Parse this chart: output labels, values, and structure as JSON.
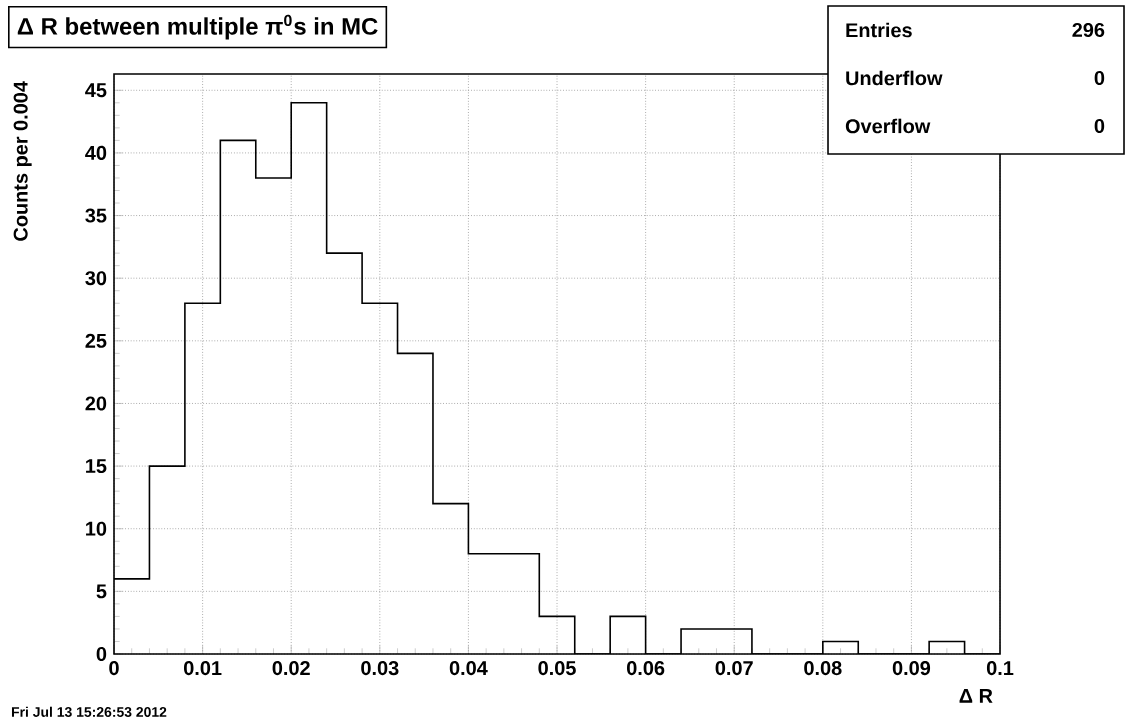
{
  "chart_data": {
    "type": "histogram",
    "title": "Δ R between multiple π$^{0}$s in MC",
    "xlabel": "Δ R",
    "ylabel": "Counts per 0.004",
    "bins": [
      0,
      0.004,
      0.008,
      0.012,
      0.016,
      0.02,
      0.024,
      0.028,
      0.032,
      0.036,
      0.04,
      0.044,
      0.048,
      0.052,
      0.056,
      0.06,
      0.064,
      0.068,
      0.072,
      0.076,
      0.08,
      0.084,
      0.088,
      0.092,
      0.096,
      0.1
    ],
    "values": [
      6,
      15,
      28,
      41,
      38,
      44,
      32,
      28,
      24,
      12,
      8,
      8,
      3,
      0,
      3,
      0,
      2,
      2,
      0,
      0,
      1,
      0,
      0,
      1,
      0
    ],
    "color": "#000000",
    "xlim": [
      0,
      0.1
    ],
    "ylim": [
      0,
      46.3
    ],
    "xticks": [
      {
        "value": 0,
        "label": "0"
      },
      {
        "value": 0.01,
        "label": "0.01"
      },
      {
        "value": 0.02,
        "label": "0.02"
      },
      {
        "value": 0.03,
        "label": "0.03"
      },
      {
        "value": 0.04,
        "label": "0.04"
      },
      {
        "value": 0.05,
        "label": "0.05"
      },
      {
        "value": 0.06,
        "label": "0.06"
      },
      {
        "value": 0.07,
        "label": "0.07"
      },
      {
        "value": 0.08,
        "label": "0.08"
      },
      {
        "value": 0.09,
        "label": "0.09"
      },
      {
        "value": 0.1,
        "label": "0.1"
      }
    ],
    "yticks": [
      0,
      5,
      10,
      15,
      20,
      25,
      30,
      35,
      40,
      45
    ],
    "grid": true,
    "annotations": [
      "Entries",
      "296",
      "Underflow",
      "0",
      "Overflow",
      "0",
      "Fri Jul 13 15:26:53 2012"
    ]
  }
}
